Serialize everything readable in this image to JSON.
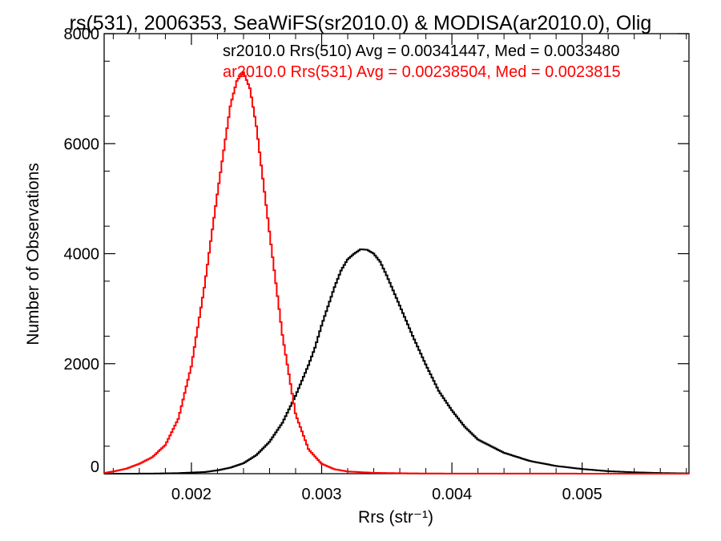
{
  "chart_data": {
    "type": "line",
    "title": "rs(531), 2006353, SeaWiFS(sr2010.0) & MODISA(ar2010.0), Olig",
    "xlabel": "Rrs (str⁻¹)",
    "ylabel": "Number of Observations",
    "xlim": [
      0.00133,
      0.00582
    ],
    "ylim": [
      0,
      8000
    ],
    "x_ticks": [
      0.002,
      0.003,
      0.004,
      0.005
    ],
    "x_tick_labels": [
      "0.002",
      "0.003",
      "0.004",
      "0.005"
    ],
    "y_ticks": [
      0,
      2000,
      4000,
      6000,
      8000
    ],
    "y_tick_labels": [
      "0",
      "2000",
      "4000",
      "6000",
      "8000"
    ],
    "grid": false,
    "legend_position": "top-right",
    "series": [
      {
        "label": "sr2010.0 Rrs(510) Avg = 0.00341447, Med = 0.0033480",
        "color": "#000000",
        "x": [
          0.00133,
          0.0015,
          0.0017,
          0.0019,
          0.0021,
          0.0022,
          0.0023,
          0.0024,
          0.0025,
          0.0026,
          0.0027,
          0.0028,
          0.0029,
          0.00295,
          0.003,
          0.0031,
          0.00315,
          0.0032,
          0.00325,
          0.0033,
          0.00335,
          0.0034,
          0.00345,
          0.0035,
          0.0036,
          0.0037,
          0.0038,
          0.0039,
          0.004,
          0.0041,
          0.0042,
          0.0044,
          0.0046,
          0.0048,
          0.005,
          0.0052,
          0.0054,
          0.0056,
          0.00582
        ],
        "y": [
          0,
          0,
          2,
          10,
          30,
          60,
          110,
          190,
          340,
          580,
          930,
          1420,
          1980,
          2300,
          2700,
          3400,
          3700,
          3900,
          4000,
          4080,
          4070,
          4000,
          3850,
          3600,
          3050,
          2500,
          1980,
          1500,
          1150,
          850,
          620,
          380,
          230,
          140,
          85,
          45,
          25,
          12,
          5
        ]
      },
      {
        "label": "ar2010.0 Rrs(531) Avg = 0.00238504, Med = 0.0023815",
        "color": "#ff0000",
        "x": [
          0.00133,
          0.0014,
          0.0015,
          0.0016,
          0.0017,
          0.0018,
          0.0019,
          0.002,
          0.0021,
          0.0022,
          0.0023,
          0.00235,
          0.0024,
          0.00245,
          0.0025,
          0.0026,
          0.0027,
          0.0028,
          0.0029,
          0.003,
          0.0031,
          0.0032,
          0.0034,
          0.0037,
          0.004,
          0.00582
        ],
        "y": [
          10,
          40,
          90,
          180,
          300,
          520,
          1000,
          1960,
          3400,
          5100,
          6700,
          7150,
          7300,
          7000,
          6300,
          4380,
          2500,
          1080,
          440,
          180,
          80,
          40,
          15,
          5,
          2,
          0
        ]
      }
    ]
  }
}
